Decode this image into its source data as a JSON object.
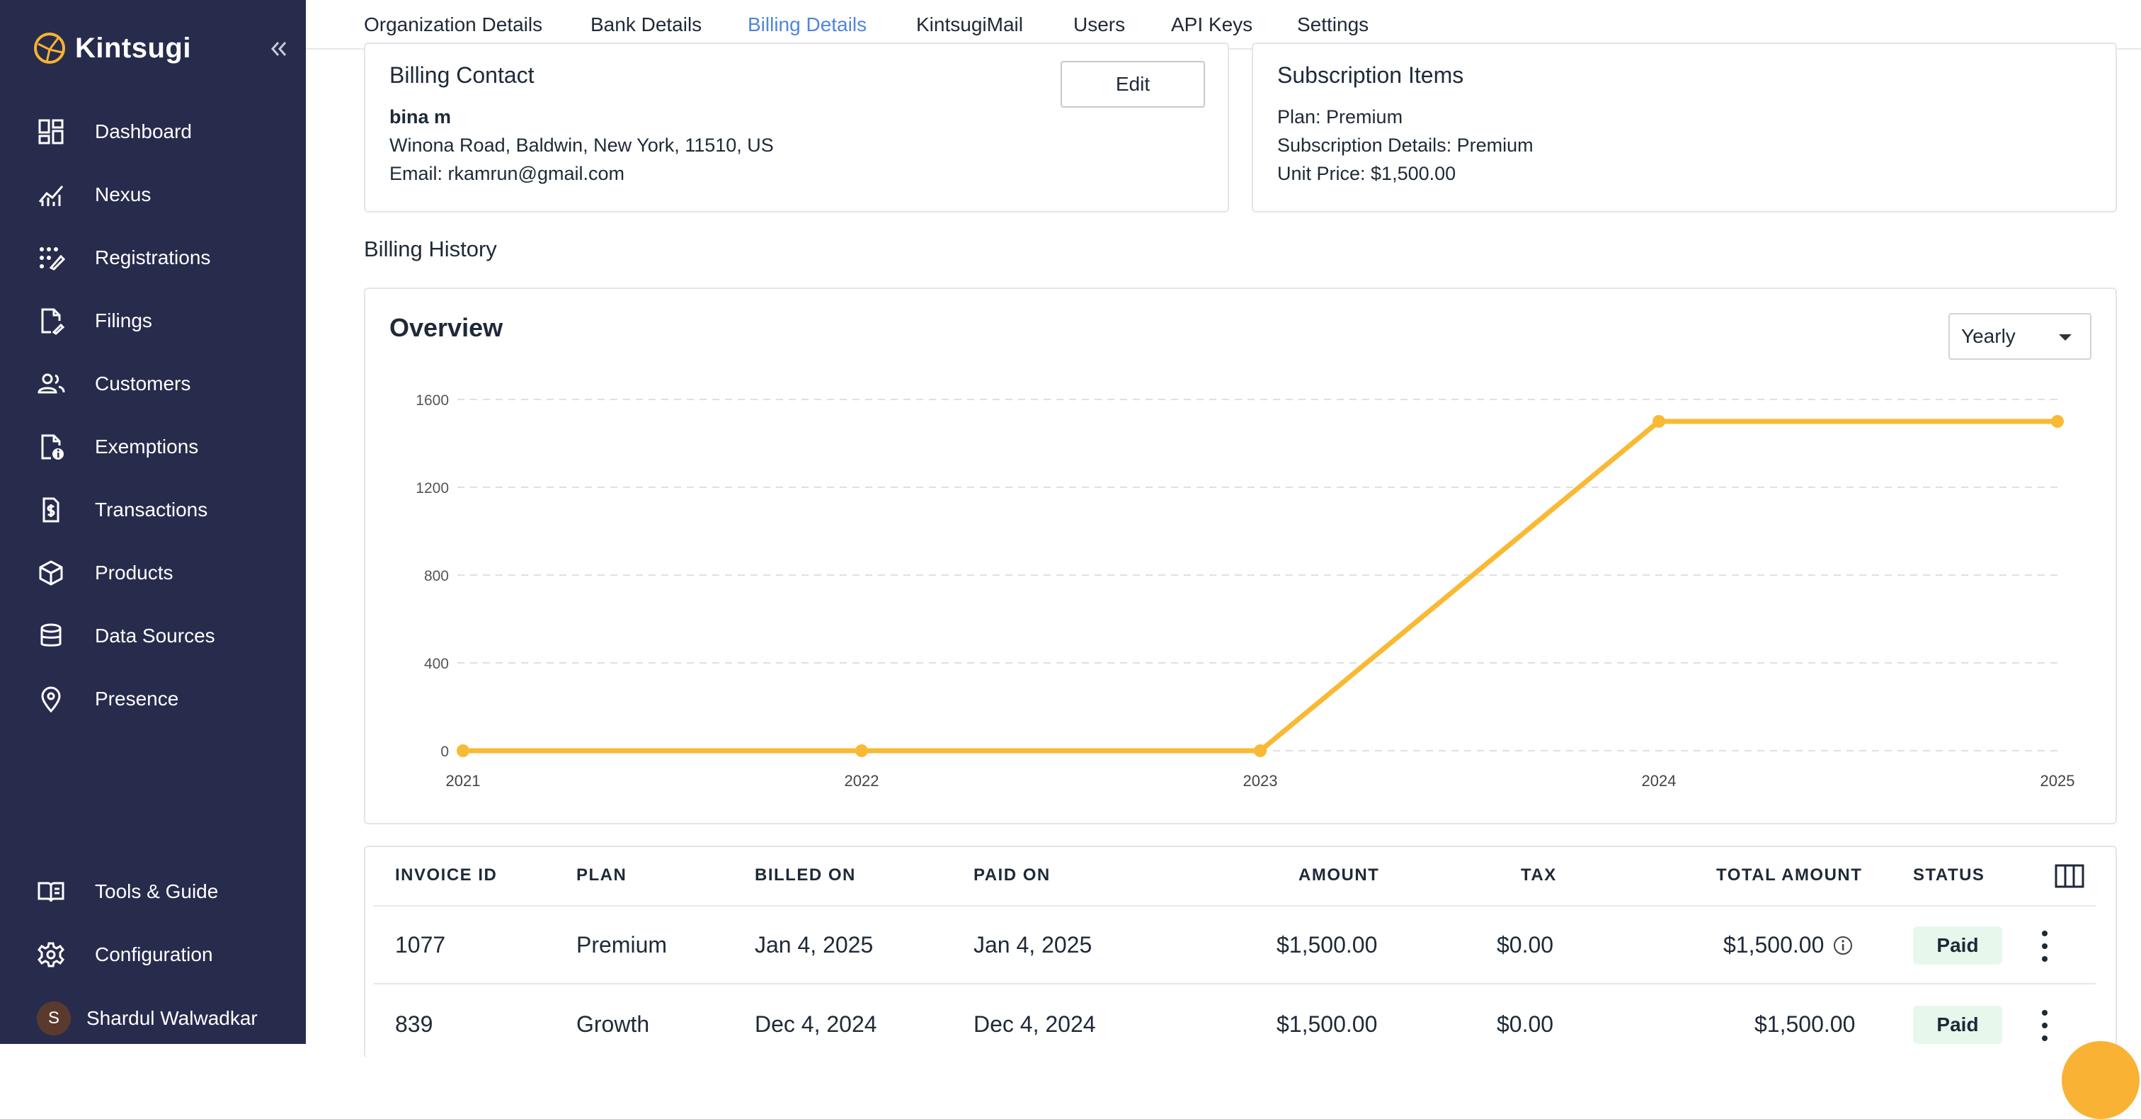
{
  "brand": {
    "name": "Kintsugi",
    "accent": "#f9b233"
  },
  "sidebar": {
    "items": [
      {
        "label": "Dashboard",
        "icon": "dashboard-icon"
      },
      {
        "label": "Nexus",
        "icon": "chart-line-icon"
      },
      {
        "label": "Registrations",
        "icon": "registrations-icon"
      },
      {
        "label": "Filings",
        "icon": "file-edit-icon"
      },
      {
        "label": "Customers",
        "icon": "users-icon"
      },
      {
        "label": "Exemptions",
        "icon": "file-info-icon"
      },
      {
        "label": "Transactions",
        "icon": "receipt-dollar-icon"
      },
      {
        "label": "Products",
        "icon": "box-icon"
      },
      {
        "label": "Data Sources",
        "icon": "database-icon"
      },
      {
        "label": "Presence",
        "icon": "location-pin-icon"
      }
    ],
    "bottom_items": [
      {
        "label": "Tools & Guide",
        "icon": "book-icon"
      },
      {
        "label": "Configuration",
        "icon": "gear-icon"
      }
    ],
    "user": {
      "initial": "S",
      "name": "Shardul Walwadkar"
    }
  },
  "tabs": [
    {
      "label": "Organization Details"
    },
    {
      "label": "Bank Details"
    },
    {
      "label": "Billing Details",
      "active": true
    },
    {
      "label": "KintsugiMail"
    },
    {
      "label": "Users"
    },
    {
      "label": "API Keys"
    },
    {
      "label": "Settings"
    }
  ],
  "billing_contact": {
    "title": "Billing Contact",
    "name": "bina m",
    "address": "Winona Road, Baldwin, New York, 11510, US",
    "email": "Email: rkamrun@gmail.com",
    "edit_label": "Edit"
  },
  "subscription": {
    "title": "Subscription Items",
    "plan": "Plan: Premium",
    "details": "Subscription Details: Premium",
    "unit_price": "Unit Price: $1,500.00"
  },
  "billing_history": {
    "title": "Billing History",
    "overview_title": "Overview",
    "period": "Yearly"
  },
  "chart_data": {
    "type": "line",
    "title": "Overview",
    "x": [
      "2021",
      "2022",
      "2023",
      "2024",
      "2025"
    ],
    "series": [
      {
        "values": [
          0,
          0,
          0,
          1500,
          1500
        ]
      }
    ],
    "yticks": [
      0,
      400,
      800,
      1200,
      1600
    ],
    "ylim": [
      0,
      1600
    ],
    "grid": true,
    "color": "#f9b933"
  },
  "table": {
    "headers": [
      "INVOICE ID",
      "PLAN",
      "BILLED ON",
      "PAID ON",
      "AMOUNT",
      "TAX",
      "TOTAL AMOUNT",
      "STATUS"
    ],
    "rows": [
      {
        "id": "1077",
        "plan": "Premium",
        "billed": "Jan 4, 2025",
        "paid": "Jan 4, 2025",
        "amount": "$1,500.00",
        "tax": "$0.00",
        "total": "$1,500.00",
        "status": "Paid"
      },
      {
        "id": "839",
        "plan": "Growth",
        "billed": "Dec 4, 2024",
        "paid": "Dec 4, 2024",
        "amount": "$1,500.00",
        "tax": "$0.00",
        "total": "$1,500.00",
        "status": "Paid"
      }
    ]
  }
}
